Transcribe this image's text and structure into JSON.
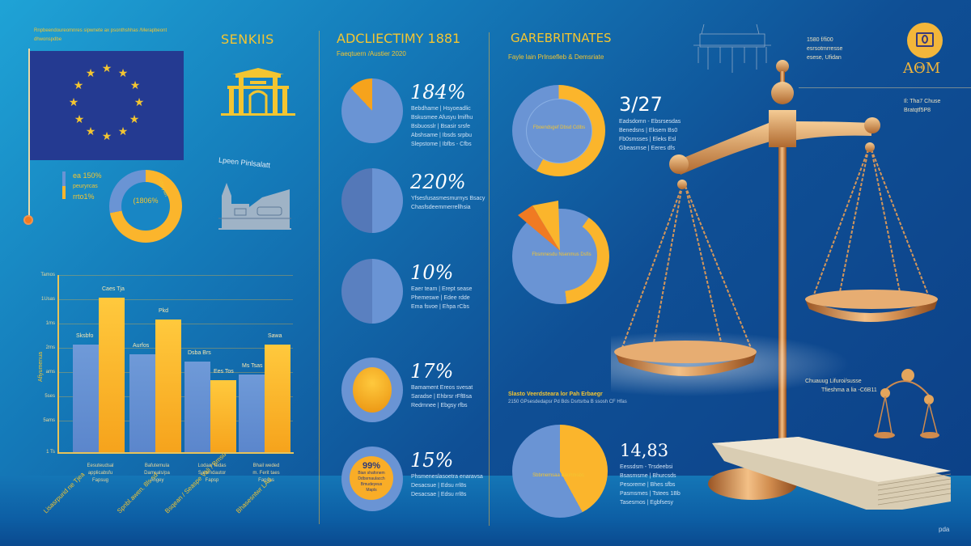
{
  "header": {
    "top_left_caption_line1": "Rnpbeendoureomnres sipwnete ax psonthshhas /Merapbeont",
    "top_left_caption_line2": "dhwonspdbe",
    "section1_title": "SENKIIS",
    "section2_title": "ADCLIECTIMY 1881",
    "section2_subtitle": "Faeqtuern /Austier 2020",
    "section3_title": "GAREBRITNATES",
    "section3_subtitle": "Fayle lain Prlnsefleb & Demsriate",
    "right_caption_lines": [
      "1580 f/fi00",
      "esrsotmrresse",
      "esese, Ufidan"
    ],
    "logo_text": "AΘM",
    "right_caption2_lines": [
      "Il: Tha7 Chuse",
      "Bratqtf5P8"
    ],
    "bottom_right_caption_lines": [
      "Chuauug Lifuroi/susse",
      "Tfieshma a lia -C6B11"
    ]
  },
  "left_panel": {
    "legend": {
      "line1": "ea 150%",
      "line2": "peuryrcas",
      "line3": "rrto1%"
    },
    "donut": {
      "center_label": "(1806%",
      "side_label": "cdsuysin"
    },
    "building_caption": "Lpeen Pinlsalatt"
  },
  "chart_data": [
    {
      "type": "bar",
      "title": "",
      "xlabel": "",
      "ylabel": "Afiyumenua",
      "y_ticks": [
        "Tamos",
        "1Usas",
        "1ms",
        "2ms",
        "ams",
        "5ses",
        "5ams",
        "1 Ts"
      ],
      "categories": [
        "Eesuteudsal / applicabsfu / Fapsug",
        "Bafutemula / Damsals/pa / Angey",
        "Lodaar tedas / Salarndautor / Fapsp",
        "Bhail weded / m. Ferit taes / Fapsas"
      ],
      "rotated_labels": [
        "Lisasrpurid ne Tjea",
        "Spnbl.awen. 8ls sd",
        "Bsqean / Seaspe Vali / Bmsd",
        "Bhasesntwr LAd"
      ],
      "series": [
        {
          "name": "blue",
          "color": "#6a94d4",
          "values": [
            64,
            58,
            54,
            46
          ]
        },
        {
          "name": "yellow",
          "color": "#fbb52c",
          "values": [
            92,
            79,
            43,
            64
          ]
        }
      ],
      "bar_labels": {
        "blue": [
          "Sksbfo",
          "Aurfos",
          "Dsba Brs",
          "Ms Tsas"
        ],
        "yellow": [
          "Caes Tja",
          "Pkd",
          "Ees Tos",
          "Sawa"
        ]
      },
      "ylim": [
        0,
        100
      ],
      "grid": true
    },
    {
      "type": "pie",
      "title": "ADCLIECTIMY 1881",
      "items": [
        {
          "label": "184%",
          "highlight_share": 0.12,
          "lines": [
            "Bebdhame | Hsyoeadlic",
            "Bskusmee Afusyu lmifhu",
            "Bsbuosslr | Bsasir srsfe",
            "Abshsame | Ibsds srpbu",
            "Slepstome | Ibfbs - Cfbs"
          ]
        },
        {
          "label": "220%",
          "highlight_share": 0.0,
          "lines": [
            "Yfsesfusasmesmurnys Bsacy",
            "Chasfsdeemmerrellhsia"
          ]
        },
        {
          "label": "10%",
          "highlight_share": 0.0,
          "lines": [
            "Eaer team | Erept sease",
            "Phemeswe | Edee rdde",
            "Ema fsvoe | Ehpa rCbs"
          ]
        },
        {
          "label": "17%",
          "highlight_share": 0.5,
          "lines": [
            "Bamament Ereos svesat",
            "Saradse | Ehbrsr rFfBsa",
            "Redrnnee | Ebgsy rfbs"
          ]
        },
        {
          "label": "15%",
          "inner_label": "99%",
          "inner_lines": [
            "Bian shafonem",
            "Ddbsrnaulacch",
            "Bmudeyeus",
            "Mapls"
          ],
          "lines": [
            "Phsmeneslasoetra enaravsa",
            "Desacsue | Edsu rrl8s",
            "Desacsae | Edsu rrl8s"
          ]
        }
      ]
    },
    {
      "type": "pie",
      "title": "GAREBRITNATES",
      "items": [
        {
          "label": "3/27",
          "center_text": "Fboendsgef Dbsd Cdlbs",
          "highlight_share": 0.55,
          "lines": [
            "Eadsdomn - Ebsrsesdas",
            "Benedsns | Eksem Bs0",
            "Fb0smsses | Eleks Esl",
            "Gbeasmse | Eeres dfs"
          ]
        },
        {
          "label": "",
          "center_text": "Fbsmnesdu Nsenmus Dsfis",
          "highlight_share": 0.3,
          "lines": []
        },
        {
          "label": "14,83",
          "center_text": "Sbbmemsaa Bauhmsbs",
          "highlight_share": 0.42,
          "caption_title": "Slasto Veerdsteara lor Pah Erbaegr",
          "caption_sub": "2150 GPsesdedapsr Pd Bds Dsrtsrba B ssosh CF Hfas",
          "lines": [
            "Eessdsm - Trsdeebsi",
            "Bsasmsme | Bhurcsds",
            "Pesoreme | Bhes sfbs",
            "Pasmsmes | Tstees 1Bb",
            "Tasesmos | Egbfsesy"
          ]
        }
      ]
    }
  ],
  "colors": {
    "background_start": "#1fa3d6",
    "background_end": "#0c3f86",
    "gold_text": "#f3b63a",
    "blue_series": "#6a94d4",
    "yellow_series": "#fbb52c",
    "flag_blue": "#243a91",
    "orange_accent": "#f07a22",
    "brass": "#d08b4d"
  },
  "watermark": "pda"
}
